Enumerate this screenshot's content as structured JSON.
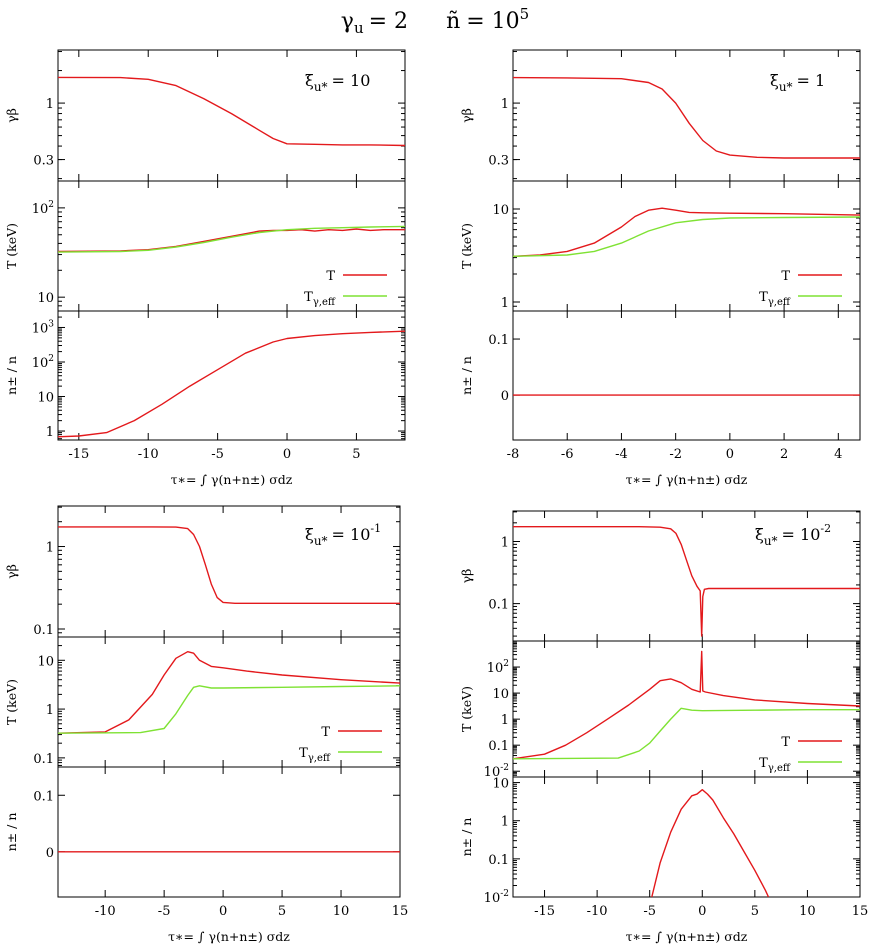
{
  "figure_title": {
    "gamma_sym": "γ",
    "gamma_sub": "u",
    "gamma_eq": "= 2",
    "n_sym": "ñ",
    "n_eq": "= 10",
    "n_sup": "5"
  },
  "colors": {
    "T": "#e3191c",
    "T_gamma_eff": "#7fe234"
  },
  "chart_data": [
    {
      "id": "tl",
      "type": "line",
      "xlim": [
        -16.5,
        8.5
      ],
      "xticks": [
        -15,
        -10,
        -5,
        0,
        5
      ],
      "xtick_labels": [
        "-15",
        "-10",
        "-5",
        "0",
        "5"
      ],
      "xlabel": "τ∗= ∫ γ(n+n±) σdz",
      "annotation": {
        "sym": "ξ",
        "sub": "u*",
        "eq": "= 10",
        "sup": ""
      },
      "panels": [
        {
          "kind": "gb",
          "ylabel": "γβ",
          "scale": "log",
          "ylim": [
            0.19,
            3.1
          ],
          "yticks": [
            0.3,
            1
          ],
          "ytick_labels": [
            "0.3",
            "1"
          ],
          "series": [
            {
              "name": "γβ",
              "color": "#e3191c",
              "x": [
                -16.5,
                -12,
                -10,
                -8,
                -6,
                -4,
                -2,
                -1,
                0,
                2,
                4,
                6,
                8.5
              ],
              "y": [
                1.73,
                1.72,
                1.66,
                1.45,
                1.1,
                0.8,
                0.56,
                0.47,
                0.42,
                0.415,
                0.41,
                0.41,
                0.405
              ]
            }
          ]
        },
        {
          "kind": "T",
          "ylabel": "T (keV)",
          "scale": "log",
          "ylim": [
            7,
            200
          ],
          "yticks": [
            10,
            100
          ],
          "ytick_labels": [
            "10",
            "10^2"
          ],
          "legend": [
            "T",
            "Tγ,eff"
          ],
          "series": [
            {
              "name": "T",
              "color": "#e3191c",
              "x": [
                -16.5,
                -12,
                -10,
                -8,
                -6,
                -4,
                -2,
                -1,
                0,
                1,
                2,
                3,
                4,
                5,
                6,
                7,
                8.5
              ],
              "y": [
                32.5,
                33,
                34,
                37,
                42,
                48,
                55,
                56,
                56,
                57,
                55,
                57,
                56,
                58,
                56,
                57,
                57
              ]
            },
            {
              "name": "Tγ,eff",
              "color": "#7fe234",
              "x": [
                -16.5,
                -12,
                -10,
                -8,
                -6,
                -4,
                -2,
                0,
                2,
                4,
                6,
                8.5
              ],
              "y": [
                32,
                32.5,
                33.5,
                36.5,
                41,
                47,
                53,
                57,
                59,
                60,
                61,
                62
              ]
            }
          ]
        },
        {
          "kind": "n",
          "ylabel": "n± / n",
          "scale": "log",
          "ylim": [
            0.55,
            3000
          ],
          "yticks": [
            1,
            10,
            100,
            1000
          ],
          "ytick_labels": [
            "1",
            "10",
            "10^2",
            "10^3"
          ],
          "series": [
            {
              "name": "n± / n",
              "color": "#e3191c",
              "x": [
                -16.5,
                -15,
                -13,
                -11,
                -9,
                -7,
                -5,
                -3,
                -1,
                0,
                2,
                4,
                6,
                8.5
              ],
              "y": [
                0.68,
                0.72,
                0.9,
                2,
                6,
                20,
                60,
                180,
                380,
                480,
                580,
                660,
                720,
                780
              ]
            }
          ]
        }
      ]
    },
    {
      "id": "tr",
      "type": "line",
      "xlim": [
        -8,
        4.8
      ],
      "xticks": [
        -8,
        -6,
        -4,
        -2,
        0,
        2,
        4
      ],
      "xtick_labels": [
        "-8",
        "-6",
        "-4",
        "-2",
        "0",
        "2",
        "4"
      ],
      "xlabel": "τ∗= ∫ γ(n+n±) σdz",
      "annotation": {
        "sym": "ξ",
        "sub": "u*",
        "eq": "= 1",
        "sup": ""
      },
      "panels": [
        {
          "kind": "gb",
          "ylabel": "γβ",
          "scale": "log",
          "ylim": [
            0.19,
            3.1
          ],
          "yticks": [
            0.3,
            1
          ],
          "ytick_labels": [
            "0.3",
            "1"
          ],
          "series": [
            {
              "name": "γβ",
              "color": "#e3191c",
              "x": [
                -8,
                -6,
                -4,
                -3,
                -2.5,
                -2,
                -1.5,
                -1,
                -0.5,
                0,
                1,
                2,
                4.8
              ],
              "y": [
                1.72,
                1.71,
                1.68,
                1.55,
                1.35,
                1.0,
                0.65,
                0.45,
                0.36,
                0.33,
                0.315,
                0.31,
                0.31
              ]
            }
          ]
        },
        {
          "kind": "T",
          "ylabel": "T (keV)",
          "scale": "log",
          "ylim": [
            0.8,
            20
          ],
          "yticks": [
            1,
            10
          ],
          "ytick_labels": [
            "1",
            "10"
          ],
          "legend": [
            "T",
            "Tγ,eff"
          ],
          "series": [
            {
              "name": "T",
              "color": "#e3191c",
              "x": [
                -8,
                -7,
                -6,
                -5,
                -4,
                -3.5,
                -3,
                -2.5,
                -2,
                -1.5,
                -1,
                0,
                2,
                4.8
              ],
              "y": [
                3.1,
                3.2,
                3.5,
                4.3,
                6.4,
                8.3,
                9.7,
                10.2,
                9.7,
                9.2,
                9.1,
                9.0,
                8.9,
                8.6
              ]
            },
            {
              "name": "Tγ,eff",
              "color": "#7fe234",
              "x": [
                -8,
                -6,
                -5,
                -4,
                -3,
                -2,
                -1,
                0,
                2,
                4.8
              ],
              "y": [
                3.1,
                3.2,
                3.5,
                4.3,
                5.8,
                7.1,
                7.7,
                8.0,
                8.1,
                8.2
              ]
            }
          ]
        },
        {
          "kind": "n",
          "ylabel": "n± / n",
          "scale": "linear",
          "ylim": [
            -0.08,
            0.15
          ],
          "yticks": [
            0,
            0.1
          ],
          "ytick_labels": [
            "0",
            "0.1"
          ],
          "series": [
            {
              "name": "n± / n",
              "color": "#e3191c",
              "x": [
                -8,
                4.8
              ],
              "y": [
                0,
                0
              ]
            }
          ]
        }
      ]
    },
    {
      "id": "bl",
      "type": "line",
      "xlim": [
        -14,
        15
      ],
      "xticks": [
        -10,
        -5,
        0,
        5,
        10,
        15
      ],
      "xtick_labels": [
        "-10",
        "-5",
        "0",
        "5",
        "10",
        "15"
      ],
      "xlabel": "τ∗= ∫ γ(n+n±) σdz",
      "annotation": {
        "sym": "ξ",
        "sub": "u*",
        "eq": "= 10",
        "sup": "-1"
      },
      "panels": [
        {
          "kind": "gb",
          "ylabel": "γβ",
          "scale": "log",
          "ylim": [
            0.08,
            3.1
          ],
          "yticks": [
            0.1,
            1
          ],
          "ytick_labels": [
            "0.1",
            "1"
          ],
          "series": [
            {
              "name": "γβ",
              "color": "#e3191c",
              "x": [
                -14,
                -6,
                -4,
                -3,
                -2.5,
                -2,
                -1.5,
                -1,
                -0.5,
                0,
                1,
                5,
                15
              ],
              "y": [
                1.73,
                1.73,
                1.72,
                1.65,
                1.4,
                1.0,
                0.6,
                0.35,
                0.24,
                0.21,
                0.205,
                0.205,
                0.205
              ]
            }
          ]
        },
        {
          "kind": "T",
          "ylabel": "T (keV)",
          "scale": "log",
          "ylim": [
            0.065,
            30
          ],
          "yticks": [
            0.1,
            1,
            10
          ],
          "ytick_labels": [
            "0.1",
            "1",
            "10"
          ],
          "legend": [
            "T",
            "Tγ,eff"
          ],
          "series": [
            {
              "name": "T",
              "color": "#e3191c",
              "x": [
                -14,
                -10,
                -8,
                -6,
                -5,
                -4,
                -3,
                -2.5,
                -2,
                -1,
                0,
                2,
                5,
                10,
                15
              ],
              "y": [
                0.32,
                0.34,
                0.6,
                2,
                5,
                11,
                15,
                14,
                10,
                7.5,
                7,
                6,
                5,
                4,
                3.4
              ]
            },
            {
              "name": "Tγ,eff",
              "color": "#7fe234",
              "x": [
                -14,
                -7,
                -5,
                -4,
                -3,
                -2.5,
                -2,
                -1,
                0,
                5,
                10,
                15
              ],
              "y": [
                0.32,
                0.33,
                0.4,
                0.8,
                1.9,
                2.8,
                3.0,
                2.7,
                2.7,
                2.8,
                2.9,
                3.0
              ]
            }
          ]
        },
        {
          "kind": "n",
          "ylabel": "n± / n",
          "scale": "linear",
          "ylim": [
            -0.08,
            0.15
          ],
          "yticks": [
            0,
            0.1
          ],
          "ytick_labels": [
            "0",
            "0.1"
          ],
          "series": [
            {
              "name": "n± / n",
              "color": "#e3191c",
              "x": [
                -14,
                15
              ],
              "y": [
                0,
                0
              ]
            }
          ]
        }
      ]
    },
    {
      "id": "br",
      "type": "line",
      "xlim": [
        -18,
        15
      ],
      "xticks": [
        -15,
        -10,
        -5,
        0,
        5,
        10,
        15
      ],
      "xtick_labels": [
        "-15",
        "-10",
        "-5",
        "0",
        "5",
        "10",
        "15"
      ],
      "xlabel": "τ∗= ∫ γ(n+n±) σdz",
      "annotation": {
        "sym": "ξ",
        "sub": "u*",
        "eq": "= 10",
        "sup": "-2"
      },
      "panels": [
        {
          "kind": "gb",
          "ylabel": "γβ",
          "scale": "log",
          "ylim": [
            0.025,
            3.1
          ],
          "yticks": [
            0.1,
            1
          ],
          "ytick_labels": [
            "0.1",
            "1"
          ],
          "series": [
            {
              "name": "γβ",
              "color": "#e3191c",
              "x": [
                -18,
                -6,
                -4,
                -3,
                -2.5,
                -2,
                -1.5,
                -1,
                -0.5,
                -0.2,
                -0.05,
                0.05,
                0.2,
                0.6,
                1,
                5,
                15
              ],
              "y": [
                1.73,
                1.73,
                1.7,
                1.6,
                1.35,
                0.9,
                0.5,
                0.28,
                0.19,
                0.16,
                0.03,
                0.13,
                0.17,
                0.175,
                0.175,
                0.175,
                0.175
              ]
            }
          ]
        },
        {
          "kind": "T",
          "ylabel": "T (keV)",
          "scale": "log",
          "ylim": [
            0.006,
            1000
          ],
          "yticks": [
            0.01,
            0.1,
            1,
            10,
            100
          ],
          "ytick_labels": [
            "10^-2",
            "0.1",
            "1",
            "10",
            "10^2"
          ],
          "legend": [
            "T",
            "Tγ,eff"
          ],
          "series": [
            {
              "name": "T",
              "color": "#e3191c",
              "x": [
                -18,
                -15,
                -13,
                -11,
                -9,
                -7,
                -5,
                -4,
                -3,
                -2,
                -1,
                -0.2,
                -0.05,
                0.05,
                0.3,
                2,
                5,
                10,
                15
              ],
              "y": [
                0.03,
                0.045,
                0.1,
                0.3,
                1,
                3.5,
                14,
                30,
                35,
                25,
                14,
                11,
                400,
                12,
                11,
                8,
                5.5,
                4,
                3.2
              ]
            },
            {
              "name": "Tγ,eff",
              "color": "#7fe234",
              "x": [
                -18,
                -8,
                -6,
                -5,
                -4,
                -3,
                -2,
                -1,
                0,
                5,
                10,
                15
              ],
              "y": [
                0.03,
                0.032,
                0.06,
                0.12,
                0.35,
                1,
                2.6,
                2.2,
                2.1,
                2.2,
                2.3,
                2.3
              ]
            }
          ]
        },
        {
          "kind": "n",
          "ylabel": "n± / n",
          "scale": "log",
          "ylim": [
            0.01,
            14
          ],
          "yticks": [
            0.01,
            0.1,
            1,
            10
          ],
          "ytick_labels": [
            "10^-2",
            "0.1",
            "1",
            "10"
          ],
          "series": [
            {
              "name": "n± / n",
              "color": "#e3191c",
              "x": [
                -4.8,
                -4,
                -3,
                -2,
                -1,
                -0.5,
                0,
                0.5,
                1,
                2,
                3,
                4,
                5,
                6,
                6.3
              ],
              "y": [
                0.01,
                0.08,
                0.5,
                2,
                4.5,
                5,
                6.5,
                5,
                3.5,
                1.2,
                0.45,
                0.15,
                0.05,
                0.015,
                0.01
              ]
            }
          ]
        }
      ]
    }
  ]
}
